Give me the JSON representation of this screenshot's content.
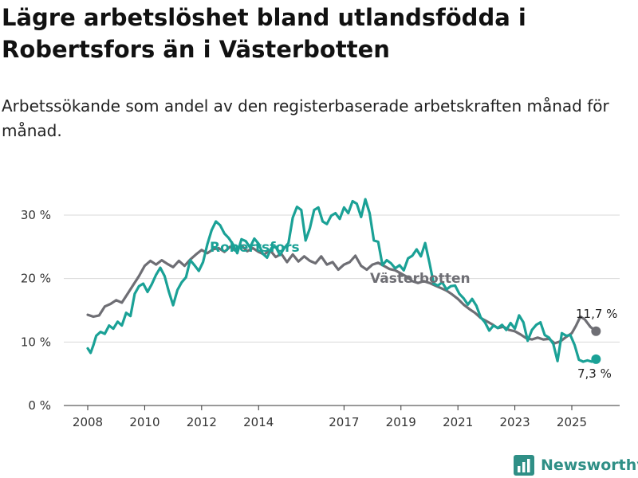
{
  "title": "Lägre arbetslöshet bland utlandsfödda i Robertsfors än i Västerbotten",
  "subtitle": "Arbetssökande som andel av den registerbaserade arbetskraften månad för månad.",
  "brand": {
    "name": "Newsworthy",
    "icon": "bar-chart-logo-icon"
  },
  "colors": {
    "robertsfors": "#1aa196",
    "vasterbotten": "#6e6e74",
    "grid": "#d9d9d9",
    "axis": "#333333"
  },
  "chart_data": {
    "type": "line",
    "title": "Lägre arbetslöshet bland utlandsfödda i Robertsfors än i Västerbotten",
    "xlabel": "",
    "ylabel": "",
    "xlim": [
      2007.6,
      2026.8
    ],
    "ylim": [
      0,
      35
    ],
    "grid": true,
    "x_ticks": [
      {
        "value": 2008,
        "label": "2008"
      },
      {
        "value": 2010,
        "label": "2010"
      },
      {
        "value": 2012,
        "label": "2012"
      },
      {
        "value": 2014,
        "label": "2014"
      },
      {
        "value": 2017,
        "label": "2017"
      },
      {
        "value": 2019,
        "label": "2019"
      },
      {
        "value": 2021,
        "label": "2021"
      },
      {
        "value": 2023,
        "label": "2023"
      },
      {
        "value": 2025,
        "label": "2025"
      }
    ],
    "y_ticks": [
      {
        "value": 0,
        "label": "0 %"
      },
      {
        "value": 10,
        "label": "10 %"
      },
      {
        "value": 20,
        "label": "20 %"
      },
      {
        "value": 30,
        "label": "30 %"
      }
    ],
    "series": [
      {
        "name": "Västerbotten",
        "key": "vasterbotten",
        "end_label": "11,7 %",
        "points": [
          [
            2008.0,
            14.3
          ],
          [
            2008.2,
            14.0
          ],
          [
            2008.4,
            14.2
          ],
          [
            2008.6,
            15.6
          ],
          [
            2008.8,
            16.0
          ],
          [
            2009.0,
            16.6
          ],
          [
            2009.2,
            16.2
          ],
          [
            2009.4,
            17.6
          ],
          [
            2009.6,
            19.0
          ],
          [
            2009.8,
            20.4
          ],
          [
            2010.0,
            22.0
          ],
          [
            2010.2,
            22.8
          ],
          [
            2010.4,
            22.2
          ],
          [
            2010.6,
            22.9
          ],
          [
            2010.8,
            22.3
          ],
          [
            2011.0,
            21.8
          ],
          [
            2011.2,
            22.8
          ],
          [
            2011.4,
            22.0
          ],
          [
            2011.6,
            23.0
          ],
          [
            2011.8,
            23.8
          ],
          [
            2012.0,
            24.5
          ],
          [
            2012.2,
            24.0
          ],
          [
            2012.4,
            24.6
          ],
          [
            2012.6,
            24.8
          ],
          [
            2012.8,
            24.2
          ],
          [
            2013.0,
            25.0
          ],
          [
            2013.2,
            24.6
          ],
          [
            2013.4,
            25.2
          ],
          [
            2013.6,
            24.3
          ],
          [
            2013.8,
            24.8
          ],
          [
            2014.0,
            24.2
          ],
          [
            2014.2,
            23.8
          ],
          [
            2014.4,
            24.5
          ],
          [
            2014.6,
            23.4
          ],
          [
            2014.8,
            23.9
          ],
          [
            2015.0,
            22.6
          ],
          [
            2015.2,
            23.8
          ],
          [
            2015.4,
            22.7
          ],
          [
            2015.6,
            23.5
          ],
          [
            2015.8,
            22.8
          ],
          [
            2016.0,
            22.4
          ],
          [
            2016.2,
            23.5
          ],
          [
            2016.4,
            22.2
          ],
          [
            2016.6,
            22.6
          ],
          [
            2016.8,
            21.4
          ],
          [
            2017.0,
            22.2
          ],
          [
            2017.2,
            22.6
          ],
          [
            2017.4,
            23.6
          ],
          [
            2017.6,
            22.0
          ],
          [
            2017.8,
            21.4
          ],
          [
            2018.0,
            22.2
          ],
          [
            2018.2,
            22.5
          ],
          [
            2018.4,
            22.0
          ],
          [
            2018.6,
            21.5
          ],
          [
            2018.8,
            21.3
          ],
          [
            2019.0,
            20.8
          ],
          [
            2019.2,
            20.3
          ],
          [
            2019.4,
            19.6
          ],
          [
            2019.6,
            19.3
          ],
          [
            2019.8,
            19.6
          ],
          [
            2020.0,
            19.3
          ],
          [
            2020.2,
            18.9
          ],
          [
            2020.4,
            18.5
          ],
          [
            2020.6,
            18.1
          ],
          [
            2020.8,
            17.5
          ],
          [
            2021.0,
            16.8
          ],
          [
            2021.2,
            15.9
          ],
          [
            2021.4,
            15.2
          ],
          [
            2021.6,
            14.6
          ],
          [
            2021.8,
            13.8
          ],
          [
            2022.0,
            13.3
          ],
          [
            2022.2,
            12.8
          ],
          [
            2022.4,
            12.2
          ],
          [
            2022.6,
            12.4
          ],
          [
            2022.8,
            11.9
          ],
          [
            2023.0,
            11.7
          ],
          [
            2023.2,
            11.2
          ],
          [
            2023.4,
            10.6
          ],
          [
            2023.6,
            10.4
          ],
          [
            2023.8,
            10.7
          ],
          [
            2024.0,
            10.4
          ],
          [
            2024.2,
            10.5
          ],
          [
            2024.4,
            9.8
          ],
          [
            2024.6,
            10.1
          ],
          [
            2024.8,
            10.8
          ],
          [
            2025.0,
            11.4
          ],
          [
            2025.15,
            12.6
          ],
          [
            2025.3,
            14.0
          ],
          [
            2025.45,
            13.6
          ],
          [
            2025.65,
            12.4
          ],
          [
            2025.85,
            11.7
          ]
        ]
      },
      {
        "name": "Robertsfors",
        "key": "robertsfors",
        "end_label": "7,3 %",
        "points": [
          [
            2008.0,
            9.0
          ],
          [
            2008.1,
            8.3
          ],
          [
            2008.2,
            9.5
          ],
          [
            2008.3,
            11.0
          ],
          [
            2008.45,
            11.6
          ],
          [
            2008.6,
            11.3
          ],
          [
            2008.75,
            12.6
          ],
          [
            2008.9,
            12.1
          ],
          [
            2009.05,
            13.2
          ],
          [
            2009.2,
            12.6
          ],
          [
            2009.35,
            14.6
          ],
          [
            2009.5,
            14.1
          ],
          [
            2009.65,
            17.6
          ],
          [
            2009.8,
            18.8
          ],
          [
            2009.95,
            19.2
          ],
          [
            2010.1,
            17.9
          ],
          [
            2010.25,
            19.1
          ],
          [
            2010.4,
            20.6
          ],
          [
            2010.55,
            21.7
          ],
          [
            2010.7,
            20.4
          ],
          [
            2010.85,
            17.9
          ],
          [
            2011.0,
            15.8
          ],
          [
            2011.15,
            18.2
          ],
          [
            2011.3,
            19.4
          ],
          [
            2011.45,
            20.2
          ],
          [
            2011.6,
            22.9
          ],
          [
            2011.75,
            22.1
          ],
          [
            2011.9,
            21.2
          ],
          [
            2012.05,
            22.6
          ],
          [
            2012.2,
            25.4
          ],
          [
            2012.35,
            27.6
          ],
          [
            2012.5,
            29.0
          ],
          [
            2012.65,
            28.4
          ],
          [
            2012.8,
            27.1
          ],
          [
            2012.95,
            26.4
          ],
          [
            2013.1,
            25.4
          ],
          [
            2013.25,
            24.0
          ],
          [
            2013.4,
            26.2
          ],
          [
            2013.55,
            25.9
          ],
          [
            2013.7,
            24.9
          ],
          [
            2013.85,
            26.3
          ],
          [
            2014.0,
            25.5
          ],
          [
            2014.15,
            23.9
          ],
          [
            2014.3,
            23.3
          ],
          [
            2014.45,
            24.8
          ],
          [
            2014.6,
            25.0
          ],
          [
            2014.75,
            23.7
          ],
          [
            2014.9,
            24.8
          ],
          [
            2015.05,
            25.6
          ],
          [
            2015.2,
            29.6
          ],
          [
            2015.35,
            31.3
          ],
          [
            2015.5,
            30.8
          ],
          [
            2015.65,
            26.0
          ],
          [
            2015.8,
            27.9
          ],
          [
            2015.95,
            30.8
          ],
          [
            2016.1,
            31.2
          ],
          [
            2016.25,
            29.0
          ],
          [
            2016.4,
            28.6
          ],
          [
            2016.55,
            29.9
          ],
          [
            2016.7,
            30.3
          ],
          [
            2016.85,
            29.4
          ],
          [
            2017.0,
            31.2
          ],
          [
            2017.15,
            30.3
          ],
          [
            2017.3,
            32.2
          ],
          [
            2017.45,
            31.8
          ],
          [
            2017.6,
            29.7
          ],
          [
            2017.75,
            32.5
          ],
          [
            2017.9,
            30.3
          ],
          [
            2018.05,
            26.0
          ],
          [
            2018.2,
            25.8
          ],
          [
            2018.35,
            22.1
          ],
          [
            2018.5,
            22.9
          ],
          [
            2018.65,
            22.4
          ],
          [
            2018.8,
            21.6
          ],
          [
            2018.95,
            22.1
          ],
          [
            2019.1,
            21.3
          ],
          [
            2019.25,
            23.2
          ],
          [
            2019.4,
            23.6
          ],
          [
            2019.55,
            24.6
          ],
          [
            2019.7,
            23.5
          ],
          [
            2019.85,
            25.6
          ],
          [
            2020.0,
            22.5
          ],
          [
            2020.15,
            19.2
          ],
          [
            2020.3,
            18.9
          ],
          [
            2020.45,
            19.4
          ],
          [
            2020.6,
            18.3
          ],
          [
            2020.75,
            18.8
          ],
          [
            2020.9,
            18.9
          ],
          [
            2021.05,
            17.6
          ],
          [
            2021.2,
            16.9
          ],
          [
            2021.35,
            15.9
          ],
          [
            2021.5,
            16.8
          ],
          [
            2021.65,
            15.7
          ],
          [
            2021.8,
            13.9
          ],
          [
            2021.95,
            13.1
          ],
          [
            2022.1,
            11.8
          ],
          [
            2022.25,
            12.6
          ],
          [
            2022.4,
            12.2
          ],
          [
            2022.55,
            12.7
          ],
          [
            2022.7,
            11.9
          ],
          [
            2022.85,
            13.0
          ],
          [
            2023.0,
            12.1
          ],
          [
            2023.15,
            14.2
          ],
          [
            2023.3,
            13.1
          ],
          [
            2023.45,
            10.2
          ],
          [
            2023.6,
            11.9
          ],
          [
            2023.75,
            12.7
          ],
          [
            2023.9,
            13.1
          ],
          [
            2024.05,
            11.1
          ],
          [
            2024.2,
            10.7
          ],
          [
            2024.35,
            9.7
          ],
          [
            2024.5,
            7.0
          ],
          [
            2024.65,
            11.4
          ],
          [
            2024.8,
            11.0
          ],
          [
            2024.95,
            11.1
          ],
          [
            2025.1,
            9.5
          ],
          [
            2025.25,
            7.2
          ],
          [
            2025.4,
            6.9
          ],
          [
            2025.55,
            7.1
          ],
          [
            2025.7,
            6.9
          ],
          [
            2025.85,
            7.3
          ]
        ]
      }
    ]
  }
}
